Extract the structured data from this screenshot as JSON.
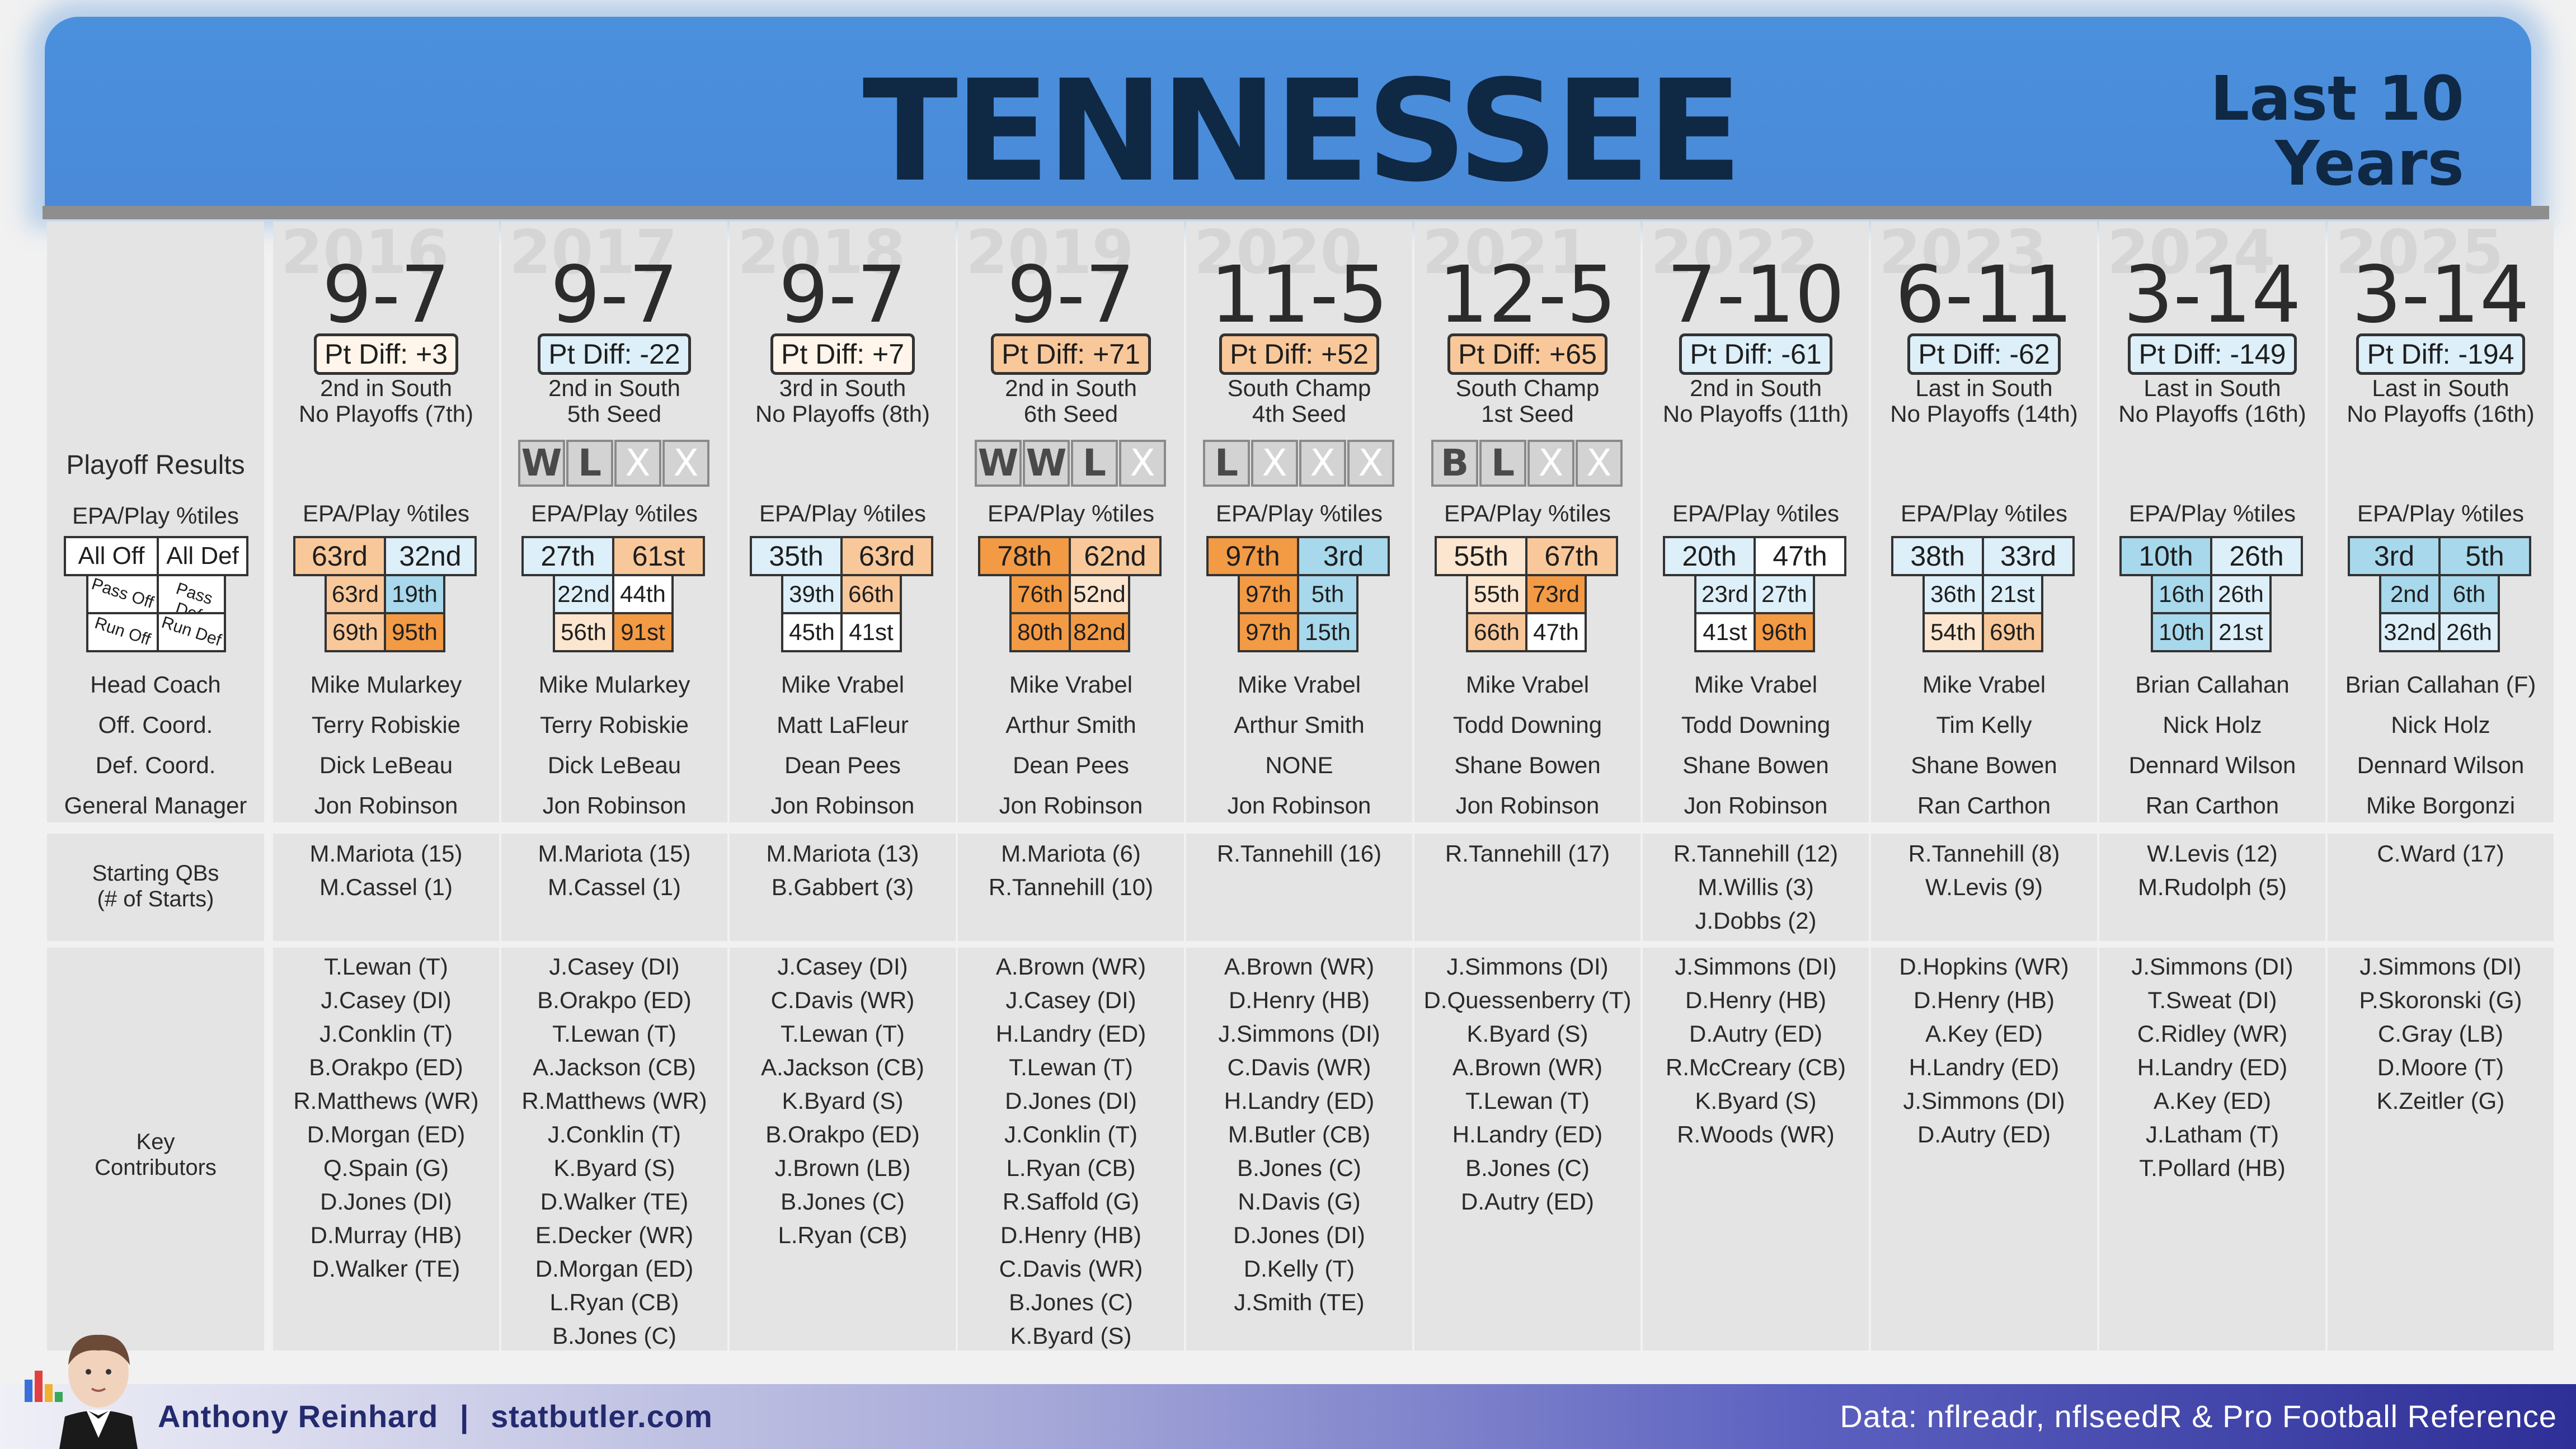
{
  "header": {
    "team": "TENNESSEE",
    "span_line1": "Last 10",
    "span_line2": "Years"
  },
  "labels": {
    "playoff_results": "Playoff Results",
    "epa_play": "EPA/Play %tiles",
    "all_off": "All Off",
    "all_def": "All Def",
    "pass_off": "Pass Off",
    "pass_def": "Pass Def",
    "run_off": "Run Off",
    "run_def": "Run Def",
    "head_coach": "Head Coach",
    "off_coord": "Off. Coord.",
    "def_coord": "Def. Coord.",
    "general_manager": "General Manager",
    "starting_qbs_1": "Starting QBs",
    "starting_qbs_2": "(# of Starts)",
    "key_1": "Key",
    "key_2": "Contributors"
  },
  "colors": {
    "banner": "#4a90dd",
    "title_text": "#0f2844",
    "pct_high": "#f39a45",
    "pct_midhigh": "#f9c89a",
    "pct_low_mid": "#fce6cf",
    "pct_neutral": "#ffffff",
    "pct_lowish": "#ddeff8",
    "pct_low": "#a8d8ec"
  },
  "seasons": [
    {
      "year": "2016",
      "record": "9-7",
      "pt_diff": "Pt Diff: +3",
      "division": "2nd in South",
      "seed": "No Playoffs (7th)",
      "playoffs": [],
      "epa": {
        "all_off": "63rd",
        "all_def": "32nd",
        "pass_off": "63rd",
        "pass_def": "19th",
        "run_off": "69th",
        "run_def": "95th"
      },
      "coach": "Mike Mularkey",
      "oc": "Terry Robiskie",
      "dc": "Dick LeBeau",
      "gm": "Jon Robinson",
      "qbs": [
        "M.Mariota (15)",
        "M.Cassel (1)"
      ],
      "contributors": [
        "T.Lewan (T)",
        "J.Casey (DI)",
        "J.Conklin (T)",
        "B.Orakpo (ED)",
        "R.Matthews (WR)",
        "D.Morgan (ED)",
        "Q.Spain (G)",
        "D.Jones (DI)",
        "D.Murray (HB)",
        "D.Walker (TE)"
      ]
    },
    {
      "year": "2017",
      "record": "9-7",
      "pt_diff": "Pt Diff: -22",
      "division": "2nd in South",
      "seed": "5th Seed",
      "playoffs": [
        "W",
        "L",
        "X",
        "X"
      ],
      "epa": {
        "all_off": "27th",
        "all_def": "61st",
        "pass_off": "22nd",
        "pass_def": "44th",
        "run_off": "56th",
        "run_def": "91st"
      },
      "coach": "Mike Mularkey",
      "oc": "Terry Robiskie",
      "dc": "Dick LeBeau",
      "gm": "Jon Robinson",
      "qbs": [
        "M.Mariota (15)",
        "M.Cassel (1)"
      ],
      "contributors": [
        "J.Casey (DI)",
        "B.Orakpo (ED)",
        "T.Lewan (T)",
        "A.Jackson (CB)",
        "R.Matthews (WR)",
        "J.Conklin (T)",
        "K.Byard (S)",
        "D.Walker (TE)",
        "E.Decker (WR)",
        "D.Morgan (ED)",
        "L.Ryan (CB)",
        "B.Jones (C)"
      ]
    },
    {
      "year": "2018",
      "record": "9-7",
      "pt_diff": "Pt Diff: +7",
      "division": "3rd in South",
      "seed": "No Playoffs (8th)",
      "playoffs": [],
      "epa": {
        "all_off": "35th",
        "all_def": "63rd",
        "pass_off": "39th",
        "pass_def": "66th",
        "run_off": "45th",
        "run_def": "41st"
      },
      "coach": "Mike Vrabel",
      "oc": "Matt LaFleur",
      "dc": "Dean Pees",
      "gm": "Jon Robinson",
      "qbs": [
        "M.Mariota (13)",
        "B.Gabbert (3)"
      ],
      "contributors": [
        "J.Casey (DI)",
        "C.Davis (WR)",
        "T.Lewan (T)",
        "A.Jackson (CB)",
        "K.Byard (S)",
        "B.Orakpo (ED)",
        "J.Brown (LB)",
        "B.Jones (C)",
        "L.Ryan (CB)"
      ]
    },
    {
      "year": "2019",
      "record": "9-7",
      "pt_diff": "Pt Diff: +71",
      "division": "2nd in South",
      "seed": "6th Seed",
      "playoffs": [
        "W",
        "W",
        "L",
        "X"
      ],
      "epa": {
        "all_off": "78th",
        "all_def": "62nd",
        "pass_off": "76th",
        "pass_def": "52nd",
        "run_off": "80th",
        "run_def": "82nd"
      },
      "coach": "Mike Vrabel",
      "oc": "Arthur Smith",
      "dc": "Dean Pees",
      "gm": "Jon Robinson",
      "qbs": [
        "M.Mariota (6)",
        "R.Tannehill (10)"
      ],
      "contributors": [
        "A.Brown (WR)",
        "J.Casey (DI)",
        "H.Landry (ED)",
        "T.Lewan (T)",
        "D.Jones (DI)",
        "J.Conklin (T)",
        "L.Ryan (CB)",
        "R.Saffold (G)",
        "D.Henry (HB)",
        "C.Davis (WR)",
        "B.Jones (C)",
        "K.Byard (S)"
      ]
    },
    {
      "year": "2020",
      "record": "11-5",
      "pt_diff": "Pt Diff: +52",
      "division": "South Champ",
      "seed": "4th Seed",
      "playoffs": [
        "L",
        "X",
        "X",
        "X"
      ],
      "epa": {
        "all_off": "97th",
        "all_def": "3rd",
        "pass_off": "97th",
        "pass_def": "5th",
        "run_off": "97th",
        "run_def": "15th"
      },
      "coach": "Mike Vrabel",
      "oc": "Arthur Smith",
      "dc": "NONE",
      "gm": "Jon Robinson",
      "qbs": [
        "R.Tannehill (16)"
      ],
      "contributors": [
        "A.Brown (WR)",
        "D.Henry (HB)",
        "J.Simmons (DI)",
        "C.Davis (WR)",
        "H.Landry (ED)",
        "M.Butler (CB)",
        "B.Jones (C)",
        "N.Davis (G)",
        "D.Jones (DI)",
        "D.Kelly (T)",
        "J.Smith (TE)"
      ]
    },
    {
      "year": "2021",
      "record": "12-5",
      "pt_diff": "Pt Diff: +65",
      "division": "South Champ",
      "seed": "1st Seed",
      "playoffs": [
        "B",
        "L",
        "X",
        "X"
      ],
      "epa": {
        "all_off": "55th",
        "all_def": "67th",
        "pass_off": "55th",
        "pass_def": "73rd",
        "run_off": "66th",
        "run_def": "47th"
      },
      "coach": "Mike Vrabel",
      "oc": "Todd Downing",
      "dc": "Shane Bowen",
      "gm": "Jon Robinson",
      "qbs": [
        "R.Tannehill (17)"
      ],
      "contributors": [
        "J.Simmons (DI)",
        "D.Quessenberry (T)",
        "K.Byard (S)",
        "A.Brown (WR)",
        "T.Lewan (T)",
        "H.Landry (ED)",
        "B.Jones (C)",
        "D.Autry (ED)"
      ]
    },
    {
      "year": "2022",
      "record": "7-10",
      "pt_diff": "Pt Diff: -61",
      "division": "2nd in South",
      "seed": "No Playoffs (11th)",
      "playoffs": [],
      "epa": {
        "all_off": "20th",
        "all_def": "47th",
        "pass_off": "23rd",
        "pass_def": "27th",
        "run_off": "41st",
        "run_def": "96th"
      },
      "coach": "Mike Vrabel",
      "oc": "Todd Downing",
      "dc": "Shane Bowen",
      "gm": "Jon Robinson",
      "qbs": [
        "R.Tannehill (12)",
        "M.Willis (3)",
        "J.Dobbs (2)"
      ],
      "contributors": [
        "J.Simmons (DI)",
        "D.Henry (HB)",
        "D.Autry (ED)",
        "R.McCreary (CB)",
        "K.Byard (S)",
        "R.Woods (WR)"
      ]
    },
    {
      "year": "2023",
      "record": "6-11",
      "pt_diff": "Pt Diff: -62",
      "division": "Last in South",
      "seed": "No Playoffs (14th)",
      "playoffs": [],
      "epa": {
        "all_off": "38th",
        "all_def": "33rd",
        "pass_off": "36th",
        "pass_def": "21st",
        "run_off": "54th",
        "run_def": "69th"
      },
      "coach": "Mike Vrabel",
      "oc": "Tim Kelly",
      "dc": "Shane Bowen",
      "gm": "Ran Carthon",
      "qbs": [
        "R.Tannehill (8)",
        "W.Levis (9)"
      ],
      "contributors": [
        "D.Hopkins (WR)",
        "D.Henry (HB)",
        "A.Key (ED)",
        "H.Landry (ED)",
        "J.Simmons (DI)",
        "D.Autry (ED)"
      ]
    },
    {
      "year": "2024",
      "record": "3-14",
      "pt_diff": "Pt Diff: -149",
      "division": "Last in South",
      "seed": "No Playoffs (16th)",
      "playoffs": [],
      "epa": {
        "all_off": "10th",
        "all_def": "26th",
        "pass_off": "16th",
        "pass_def": "26th",
        "run_off": "10th",
        "run_def": "21st"
      },
      "coach": "Brian Callahan",
      "oc": "Nick Holz",
      "dc": "Dennard Wilson",
      "gm": "Ran Carthon",
      "qbs": [
        "W.Levis (12)",
        "M.Rudolph (5)"
      ],
      "contributors": [
        "J.Simmons (DI)",
        "T.Sweat (DI)",
        "C.Ridley (WR)",
        "H.Landry (ED)",
        "A.Key (ED)",
        "J.Latham (T)",
        "T.Pollard (HB)"
      ]
    },
    {
      "year": "2025",
      "record": "3-14",
      "pt_diff": "Pt Diff: -194",
      "division": "Last in South",
      "seed": "No Playoffs (16th)",
      "playoffs": [],
      "epa": {
        "all_off": "3rd",
        "all_def": "5th",
        "pass_off": "2nd",
        "pass_def": "6th",
        "run_off": "32nd",
        "run_def": "26th"
      },
      "coach": "Brian Callahan (F)",
      "oc": "Nick Holz",
      "dc": "Dennard Wilson",
      "gm": "Mike Borgonzi",
      "qbs": [
        "C.Ward (17)"
      ],
      "contributors": [
        "J.Simmons (DI)",
        "P.Skoronski (G)",
        "C.Gray (LB)",
        "D.Moore (T)",
        "K.Zeitler (G)"
      ]
    }
  ],
  "footer": {
    "author": "Anthony Reinhard",
    "separator": "|",
    "site": "statbutler.com",
    "source": "Data: nflreadr, nflseedR & Pro Football Reference"
  }
}
